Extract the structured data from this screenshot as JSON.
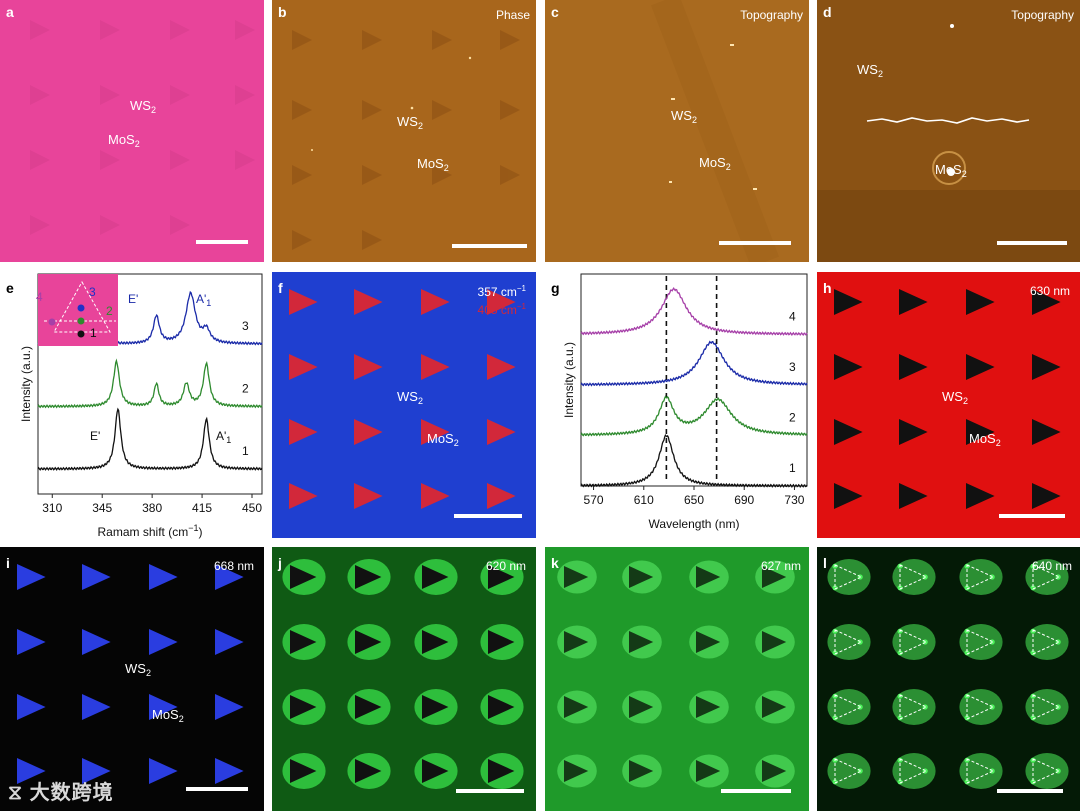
{
  "panels": {
    "a": {
      "label": "a",
      "ws2": "WS",
      "ws2_sub": "2",
      "mos2": "MoS",
      "mos2_sub": "2",
      "bg": "#e8449a"
    },
    "b": {
      "label": "b",
      "title": "Phase",
      "ws2": "WS",
      "ws2_sub": "2",
      "mos2": "MoS",
      "mos2_sub": "2",
      "bg": "#a8661c"
    },
    "c": {
      "label": "c",
      "title": "Topography",
      "ws2": "WS",
      "ws2_sub": "2",
      "mos2": "MoS",
      "mos2_sub": "2",
      "bg": "#a96a1f"
    },
    "d": {
      "label": "d",
      "title": "Topography",
      "ws2": "WS",
      "ws2_sub": "2",
      "mos2": "MoS",
      "mos2_sub": "2",
      "bg": "#8a5214"
    },
    "f": {
      "label": "f",
      "line1": "357 cm",
      "line1_sup": "−1",
      "line2": "405 cm",
      "line2_sup": "−1",
      "ws2": "WS",
      "ws2_sub": "2",
      "mos2": "MoS",
      "mos2_sub": "2",
      "bg": "#1f3fd0",
      "tri_color": "#d2283a"
    },
    "h": {
      "label": "h",
      "title": "630 nm",
      "ws2": "WS",
      "ws2_sub": "2",
      "mos2": "MoS",
      "mos2_sub": "2",
      "bg": "#e01010",
      "tri_color": "#111111"
    },
    "i": {
      "label": "i",
      "title": "668 nm",
      "ws2": "WS",
      "ws2_sub": "2",
      "mos2": "MoS",
      "mos2_sub": "2",
      "bg": "#050505",
      "tri_color": "#2a3de0"
    },
    "j": {
      "label": "j",
      "title": "620 nm",
      "bg": "#0f5a14",
      "glow": "#39e04a"
    },
    "k": {
      "label": "k",
      "title": "627 nm",
      "bg": "#1f9a2a",
      "glow": "#5cf06a"
    },
    "l": {
      "label": "l",
      "title": "640 nm",
      "bg": "#041a06",
      "glow": "#4cf05a"
    }
  },
  "chart_data": [
    {
      "panel": "e",
      "type": "line",
      "xlabel": "Ramam shift (cm",
      "xlabel_sup": "−1",
      "xlabel_end": ")",
      "ylabel": "Intensity (a.u.)",
      "xlim": [
        300,
        457
      ],
      "xticks": [
        310,
        345,
        380,
        415,
        450
      ],
      "series": [
        {
          "name": "3",
          "color": "#1a2aa8",
          "offset": 3.0,
          "peaks": [
            [
              349,
              0.08,
              3
            ],
            [
              383,
              0.55,
              2.5
            ],
            [
              407,
              1.0,
              4
            ],
            [
              418,
              0.25,
              3
            ]
          ]
        },
        {
          "name": "2",
          "color": "#2e8a2e",
          "offset": 1.75,
          "peaks": [
            [
              355,
              0.9,
              2.5
            ],
            [
              383,
              0.45,
              2
            ],
            [
              404,
              0.45,
              2.5
            ],
            [
              418,
              0.85,
              2.5
            ]
          ]
        },
        {
          "name": "1",
          "color": "#111111",
          "offset": 0.5,
          "peaks": [
            [
              356,
              1.2,
              2.5
            ],
            [
              418,
              1.0,
              2.5
            ]
          ]
        }
      ],
      "annotations": {
        "e_prime_top": "E'",
        "a1_top": "A'",
        "a1_top_sub": "1",
        "e_prime_bottom": "E'",
        "a1_bottom": "A'",
        "a1_bottom_sub": "1"
      },
      "inset": {
        "labels": [
          "4",
          "3",
          "2",
          "1"
        ],
        "bg": "#e8449a"
      }
    },
    {
      "panel": "g",
      "type": "line",
      "xlabel": "Wavelength (nm)",
      "ylabel": "Intensity (a.u.)",
      "xlim": [
        560,
        740
      ],
      "xticks": [
        570,
        610,
        650,
        690,
        730
      ],
      "dashed_lines": [
        628,
        668
      ],
      "series": [
        {
          "name": "4",
          "color": "#a640a8",
          "offset": 3.0,
          "peaks": [
            [
              634,
              0.9,
              12
            ]
          ]
        },
        {
          "name": "3",
          "color": "#1a2aa8",
          "offset": 2.0,
          "peaks": [
            [
              664,
              0.85,
              12
            ]
          ]
        },
        {
          "name": "2",
          "color": "#2e8a2e",
          "offset": 1.0,
          "peaks": [
            [
              628,
              0.7,
              7
            ],
            [
              669,
              0.7,
              13
            ]
          ]
        },
        {
          "name": "1",
          "color": "#111111",
          "offset": 0.0,
          "peaks": [
            [
              628,
              1.0,
              7
            ]
          ]
        }
      ]
    }
  ],
  "watermark": "大数跨境"
}
